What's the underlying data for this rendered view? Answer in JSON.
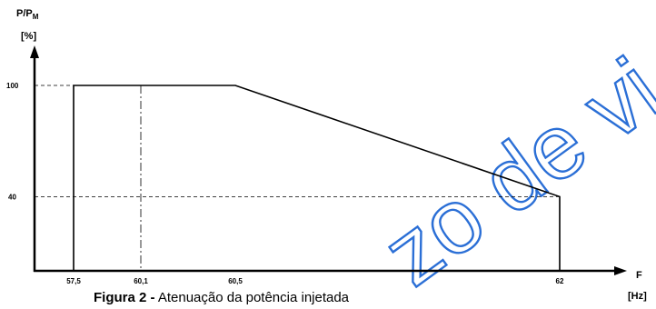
{
  "chart_data": {
    "type": "line",
    "ylabel_lines": [
      "P/P",
      "M",
      "[%]"
    ],
    "xlabel_lines": [
      "F",
      "[Hz]"
    ],
    "caption_bold": "Figura 2 -",
    "caption_rest": " Atenuação da potência injetada",
    "watermark": "zo de vi",
    "x_ticks": [
      {
        "value": 57.5,
        "label": "57,5"
      },
      {
        "value": 60.1,
        "label": "60,1"
      },
      {
        "value": 60.5,
        "label": "60,5"
      },
      {
        "value": 62,
        "label": "62"
      }
    ],
    "y_ticks": [
      {
        "value": 40,
        "label": "40"
      },
      {
        "value": 100,
        "label": "100"
      }
    ],
    "curve": {
      "x": [
        57.5,
        57.5,
        60.5,
        62,
        62
      ],
      "y": [
        0,
        100,
        100,
        40,
        0
      ]
    },
    "reference_line_x": 60.1,
    "colors": {
      "axis": "#000000",
      "watermark": "#2b6fd6"
    }
  }
}
